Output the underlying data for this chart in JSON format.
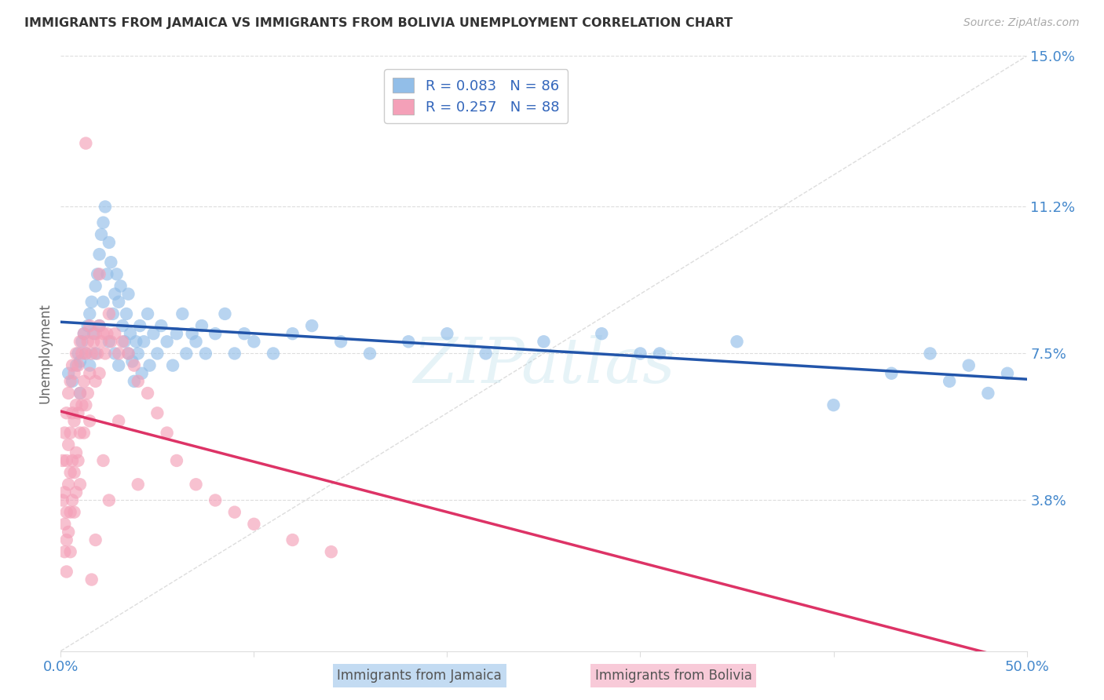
{
  "title": "IMMIGRANTS FROM JAMAICA VS IMMIGRANTS FROM BOLIVIA UNEMPLOYMENT CORRELATION CHART",
  "source": "Source: ZipAtlas.com",
  "ylabel": "Unemployment",
  "x_min": 0.0,
  "x_max": 0.5,
  "y_min": 0.0,
  "y_max": 0.15,
  "y_tick_labels_right": [
    "15.0%",
    "11.2%",
    "7.5%",
    "3.8%"
  ],
  "y_tick_vals_right": [
    0.15,
    0.112,
    0.075,
    0.038
  ],
  "legend_r_jamaica": "R = 0.083",
  "legend_n_jamaica": "N = 86",
  "legend_r_bolivia": "R = 0.257",
  "legend_n_bolivia": "N = 88",
  "color_jamaica": "#92BEE8",
  "color_bolivia": "#F4A0B8",
  "line_color_jamaica": "#2255AA",
  "line_color_bolivia": "#DD3366",
  "diagonal_color": "#DDDDDD",
  "watermark": "ZIPatlas",
  "jamaica_x": [
    0.004,
    0.006,
    0.008,
    0.009,
    0.01,
    0.01,
    0.011,
    0.012,
    0.013,
    0.014,
    0.015,
    0.015,
    0.016,
    0.017,
    0.018,
    0.018,
    0.019,
    0.02,
    0.02,
    0.021,
    0.022,
    0.022,
    0.023,
    0.024,
    0.025,
    0.025,
    0.026,
    0.027,
    0.028,
    0.028,
    0.029,
    0.03,
    0.03,
    0.031,
    0.032,
    0.033,
    0.034,
    0.035,
    0.035,
    0.036,
    0.037,
    0.038,
    0.039,
    0.04,
    0.041,
    0.042,
    0.043,
    0.045,
    0.046,
    0.048,
    0.05,
    0.052,
    0.055,
    0.058,
    0.06,
    0.063,
    0.065,
    0.068,
    0.07,
    0.073,
    0.075,
    0.08,
    0.085,
    0.09,
    0.095,
    0.1,
    0.11,
    0.12,
    0.13,
    0.145,
    0.16,
    0.18,
    0.2,
    0.22,
    0.25,
    0.28,
    0.31,
    0.35,
    0.4,
    0.43,
    0.45,
    0.46,
    0.47,
    0.48,
    0.49,
    0.3
  ],
  "jamaica_y": [
    0.07,
    0.068,
    0.072,
    0.075,
    0.065,
    0.073,
    0.078,
    0.08,
    0.075,
    0.082,
    0.085,
    0.072,
    0.088,
    0.08,
    0.092,
    0.075,
    0.095,
    0.1,
    0.082,
    0.105,
    0.108,
    0.088,
    0.112,
    0.095,
    0.103,
    0.078,
    0.098,
    0.085,
    0.09,
    0.075,
    0.095,
    0.088,
    0.072,
    0.092,
    0.082,
    0.078,
    0.085,
    0.09,
    0.075,
    0.08,
    0.073,
    0.068,
    0.078,
    0.075,
    0.082,
    0.07,
    0.078,
    0.085,
    0.072,
    0.08,
    0.075,
    0.082,
    0.078,
    0.072,
    0.08,
    0.085,
    0.075,
    0.08,
    0.078,
    0.082,
    0.075,
    0.08,
    0.085,
    0.075,
    0.08,
    0.078,
    0.075,
    0.08,
    0.082,
    0.078,
    0.075,
    0.078,
    0.08,
    0.075,
    0.078,
    0.08,
    0.075,
    0.078,
    0.062,
    0.07,
    0.075,
    0.068,
    0.072,
    0.065,
    0.07,
    0.075
  ],
  "bolivia_x": [
    0.001,
    0.001,
    0.002,
    0.002,
    0.002,
    0.002,
    0.003,
    0.003,
    0.003,
    0.003,
    0.003,
    0.004,
    0.004,
    0.004,
    0.004,
    0.005,
    0.005,
    0.005,
    0.005,
    0.005,
    0.006,
    0.006,
    0.006,
    0.006,
    0.007,
    0.007,
    0.007,
    0.007,
    0.008,
    0.008,
    0.008,
    0.008,
    0.009,
    0.009,
    0.009,
    0.01,
    0.01,
    0.01,
    0.01,
    0.011,
    0.011,
    0.012,
    0.012,
    0.012,
    0.013,
    0.013,
    0.014,
    0.014,
    0.015,
    0.015,
    0.015,
    0.016,
    0.017,
    0.018,
    0.018,
    0.019,
    0.02,
    0.02,
    0.021,
    0.022,
    0.023,
    0.024,
    0.025,
    0.026,
    0.028,
    0.03,
    0.032,
    0.035,
    0.038,
    0.04,
    0.045,
    0.05,
    0.055,
    0.06,
    0.07,
    0.08,
    0.09,
    0.1,
    0.12,
    0.14,
    0.013,
    0.02,
    0.03,
    0.04,
    0.025,
    0.018,
    0.022,
    0.016
  ],
  "bolivia_y": [
    0.048,
    0.038,
    0.055,
    0.04,
    0.032,
    0.025,
    0.06,
    0.048,
    0.035,
    0.028,
    0.02,
    0.065,
    0.052,
    0.042,
    0.03,
    0.068,
    0.055,
    0.045,
    0.035,
    0.025,
    0.072,
    0.06,
    0.048,
    0.038,
    0.07,
    0.058,
    0.045,
    0.035,
    0.075,
    0.062,
    0.05,
    0.04,
    0.072,
    0.06,
    0.048,
    0.078,
    0.065,
    0.055,
    0.042,
    0.075,
    0.062,
    0.08,
    0.068,
    0.055,
    0.075,
    0.062,
    0.078,
    0.065,
    0.082,
    0.07,
    0.058,
    0.075,
    0.078,
    0.08,
    0.068,
    0.075,
    0.082,
    0.07,
    0.078,
    0.08,
    0.075,
    0.08,
    0.085,
    0.078,
    0.08,
    0.075,
    0.078,
    0.075,
    0.072,
    0.068,
    0.065,
    0.06,
    0.055,
    0.048,
    0.042,
    0.038,
    0.035,
    0.032,
    0.028,
    0.025,
    0.128,
    0.095,
    0.058,
    0.042,
    0.038,
    0.028,
    0.048,
    0.018
  ]
}
